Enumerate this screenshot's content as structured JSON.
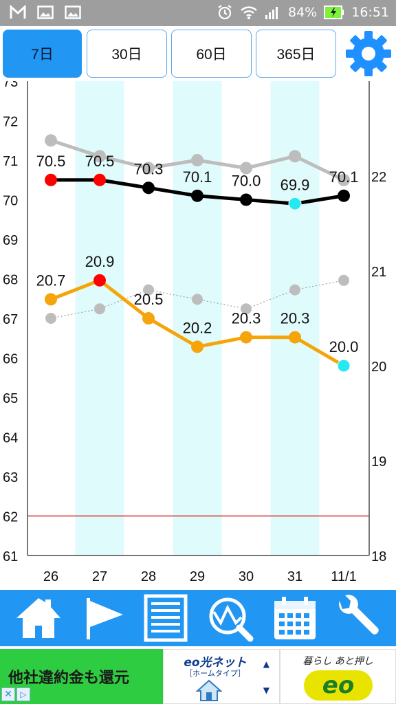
{
  "status_bar": {
    "battery": "84%",
    "time": "16:51",
    "icons": [
      "gmail-icon",
      "image-icon",
      "image-icon",
      "alarm-icon",
      "wifi-icon",
      "signal-icon",
      "battery-charging-icon"
    ]
  },
  "tabs": [
    {
      "label": "7日",
      "active": true
    },
    {
      "label": "30日",
      "active": false
    },
    {
      "label": "60日",
      "active": false
    },
    {
      "label": "365日",
      "active": false
    }
  ],
  "chart_data": {
    "type": "line",
    "categories": [
      "26",
      "27",
      "28",
      "29",
      "30",
      "31",
      "11/1"
    ],
    "left_axis": {
      "min": 61,
      "max": 73,
      "ticks": [
        "61",
        "62",
        "63",
        "64",
        "65",
        "66",
        "67",
        "68",
        "69",
        "70",
        "71",
        "72",
        "73"
      ]
    },
    "right_axis": {
      "min": 18,
      "max": 23,
      "ticks": [
        "18",
        "19",
        "20",
        "21",
        "22"
      ]
    },
    "target_line": {
      "axis": "left",
      "value": 62,
      "color": "#d32f2f"
    },
    "series": [
      {
        "axis": "left",
        "color": "#bdbdbd",
        "style": "solid",
        "values": [
          71.5,
          71.1,
          70.8,
          71.0,
          70.8,
          71.1,
          70.5
        ],
        "labels": []
      },
      {
        "axis": "left",
        "color": "#000000",
        "style": "solid",
        "values": [
          70.5,
          70.5,
          70.3,
          70.1,
          70.0,
          69.9,
          70.1
        ],
        "labels": [
          "70.5",
          "70.5",
          "70.3",
          "70.1",
          "70.0",
          "69.9",
          "70.1"
        ],
        "point_colors": [
          "#ff0000",
          "#ff0000",
          "#000000",
          "#000000",
          "#000000",
          "#26e8f0",
          "#000000"
        ]
      },
      {
        "axis": "right",
        "color": "#bdbdbd",
        "style": "dotted",
        "values": [
          20.5,
          20.6,
          20.8,
          20.7,
          20.6,
          20.8,
          20.9
        ],
        "labels": []
      },
      {
        "axis": "right",
        "color": "#f5a50a",
        "style": "solid",
        "values": [
          20.7,
          20.9,
          20.5,
          20.2,
          20.3,
          20.3,
          20.0
        ],
        "labels": [
          "20.7",
          "20.9",
          "20.5",
          "20.2",
          "20.3",
          "20.3",
          "20.0"
        ],
        "point_colors": [
          "#f5a50a",
          "#ff0000",
          "#f5a50a",
          "#f5a50a",
          "#f5a50a",
          "#f5a50a",
          "#26e8f0"
        ]
      }
    ],
    "stripe_color": "#e0fbfb",
    "grid": false
  },
  "toolbar": {
    "buttons": [
      {
        "name": "home-icon"
      },
      {
        "name": "flag-icon"
      },
      {
        "name": "list-icon"
      },
      {
        "name": "analysis-icon"
      },
      {
        "name": "calendar-icon"
      },
      {
        "name": "wrench-icon"
      }
    ]
  },
  "ad": {
    "left_text": "他社違約金も還元",
    "mid_brand": "eo光ネット",
    "mid_sub": "［ホームタイプ］",
    "right_tagline": "暮らし あと押し",
    "right_logo": "eo"
  }
}
